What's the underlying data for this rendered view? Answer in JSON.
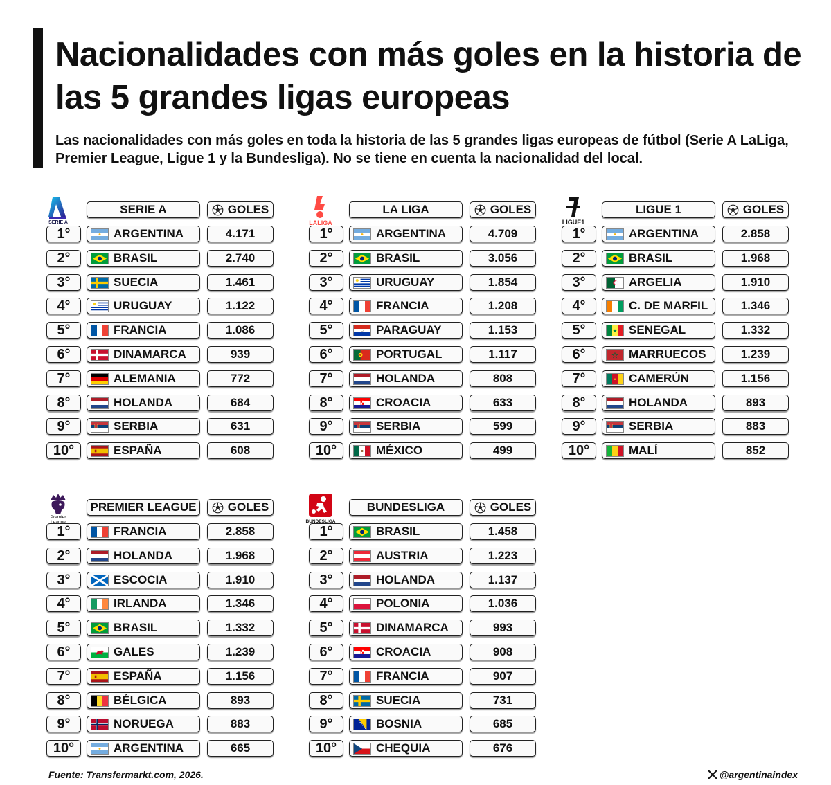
{
  "title": "Nacionalidades con más goles en la historia de las 5 grandes ligas europeas",
  "subtitle": "Las nacionalidades con más goles en toda la historia de las 5 grandes ligas europeas de fútbol (Serie A LaLiga, Premier League, Ligue 1 y la Bundesliga). No se tiene en cuenta la nacionalidad del local.",
  "goals_header": "GOLES",
  "leagues": [
    {
      "name": "SERIE A",
      "logo": "serie-a-logo",
      "logo_text": "SERIE A",
      "rows": [
        {
          "rank": "1°",
          "team": "ARGENTINA",
          "flag": "argentina",
          "goals": "4.171"
        },
        {
          "rank": "2°",
          "team": "BRASIL",
          "flag": "brazil",
          "goals": "2.740"
        },
        {
          "rank": "3°",
          "team": "SUECIA",
          "flag": "sweden",
          "goals": "1.461"
        },
        {
          "rank": "4°",
          "team": "URUGUAY",
          "flag": "uruguay",
          "goals": "1.122"
        },
        {
          "rank": "5°",
          "team": "FRANCIA",
          "flag": "france",
          "goals": "1.086"
        },
        {
          "rank": "6°",
          "team": "DINAMARCA",
          "flag": "denmark",
          "goals": "939"
        },
        {
          "rank": "7°",
          "team": "ALEMANIA",
          "flag": "germany",
          "goals": "772"
        },
        {
          "rank": "8°",
          "team": "HOLANDA",
          "flag": "netherlands",
          "goals": "684"
        },
        {
          "rank": "9°",
          "team": "SERBIA",
          "flag": "serbia",
          "goals": "631"
        },
        {
          "rank": "10°",
          "team": "ESPAÑA",
          "flag": "spain",
          "goals": "608"
        }
      ]
    },
    {
      "name": "LA LIGA",
      "logo": "laliga-logo",
      "logo_text": "LALIGA",
      "rows": [
        {
          "rank": "1°",
          "team": "ARGENTINA",
          "flag": "argentina",
          "goals": "4.709"
        },
        {
          "rank": "2°",
          "team": "BRASIL",
          "flag": "brazil",
          "goals": "3.056"
        },
        {
          "rank": "3°",
          "team": "URUGUAY",
          "flag": "uruguay",
          "goals": "1.854"
        },
        {
          "rank": "4°",
          "team": "FRANCIA",
          "flag": "france",
          "goals": "1.208"
        },
        {
          "rank": "5°",
          "team": "PARAGUAY",
          "flag": "paraguay",
          "goals": "1.153"
        },
        {
          "rank": "6°",
          "team": "PORTUGAL",
          "flag": "portugal",
          "goals": "1.117"
        },
        {
          "rank": "7°",
          "team": "HOLANDA",
          "flag": "netherlands",
          "goals": "808"
        },
        {
          "rank": "8°",
          "team": "CROACIA",
          "flag": "croatia",
          "goals": "633"
        },
        {
          "rank": "9°",
          "team": "SERBIA",
          "flag": "serbia",
          "goals": "599"
        },
        {
          "rank": "10°",
          "team": "MÉXICO",
          "flag": "mexico",
          "goals": "499"
        }
      ]
    },
    {
      "name": "LIGUE 1",
      "logo": "ligue1-logo",
      "logo_text": "LIGUE1",
      "rows": [
        {
          "rank": "1°",
          "team": "ARGENTINA",
          "flag": "argentina",
          "goals": "2.858"
        },
        {
          "rank": "2°",
          "team": "BRASIL",
          "flag": "brazil",
          "goals": "1.968"
        },
        {
          "rank": "3°",
          "team": "ARGELIA",
          "flag": "algeria",
          "goals": "1.910"
        },
        {
          "rank": "4°",
          "team": "C. DE MARFIL",
          "flag": "ivory-coast",
          "goals": "1.346"
        },
        {
          "rank": "5°",
          "team": "SENEGAL",
          "flag": "senegal",
          "goals": "1.332"
        },
        {
          "rank": "6°",
          "team": "MARRUECOS",
          "flag": "morocco",
          "goals": "1.239"
        },
        {
          "rank": "7°",
          "team": "CAMERÚN",
          "flag": "cameroon",
          "goals": "1.156"
        },
        {
          "rank": "8°",
          "team": "HOLANDA",
          "flag": "netherlands",
          "goals": "893"
        },
        {
          "rank": "9°",
          "team": "SERBIA",
          "flag": "serbia",
          "goals": "883"
        },
        {
          "rank": "10°",
          "team": "MALÍ",
          "flag": "mali",
          "goals": "852"
        }
      ]
    },
    {
      "name": "PREMIER LEAGUE",
      "logo": "premier-league-logo",
      "logo_text": "Premier League",
      "rows": [
        {
          "rank": "1°",
          "team": "FRANCIA",
          "flag": "france",
          "goals": "2.858"
        },
        {
          "rank": "2°",
          "team": "HOLANDA",
          "flag": "netherlands",
          "goals": "1.968"
        },
        {
          "rank": "3°",
          "team": "ESCOCIA",
          "flag": "scotland",
          "goals": "1.910"
        },
        {
          "rank": "4°",
          "team": "IRLANDA",
          "flag": "ireland",
          "goals": "1.346"
        },
        {
          "rank": "5°",
          "team": "BRASIL",
          "flag": "brazil",
          "goals": "1.332"
        },
        {
          "rank": "6°",
          "team": "GALES",
          "flag": "wales",
          "goals": "1.239"
        },
        {
          "rank": "7°",
          "team": "ESPAÑA",
          "flag": "spain",
          "goals": "1.156"
        },
        {
          "rank": "8°",
          "team": "BÉLGICA",
          "flag": "belgium",
          "goals": "893"
        },
        {
          "rank": "9°",
          "team": "NORUEGA",
          "flag": "norway",
          "goals": "883"
        },
        {
          "rank": "10°",
          "team": "ARGENTINA",
          "flag": "argentina",
          "goals": "665"
        }
      ]
    },
    {
      "name": "BUNDESLIGA",
      "logo": "bundesliga-logo",
      "logo_text": "BUNDESLIGA",
      "rows": [
        {
          "rank": "1°",
          "team": "BRASIL",
          "flag": "brazil",
          "goals": "1.458"
        },
        {
          "rank": "2°",
          "team": "AUSTRIA",
          "flag": "austria",
          "goals": "1.223"
        },
        {
          "rank": "3°",
          "team": "HOLANDA",
          "flag": "netherlands",
          "goals": "1.137"
        },
        {
          "rank": "4°",
          "team": "POLONIA",
          "flag": "poland",
          "goals": "1.036"
        },
        {
          "rank": "5°",
          "team": "DINAMARCA",
          "flag": "denmark",
          "goals": "993"
        },
        {
          "rank": "6°",
          "team": "CROACIA",
          "flag": "croatia",
          "goals": "908"
        },
        {
          "rank": "7°",
          "team": "FRANCIA",
          "flag": "france",
          "goals": "907"
        },
        {
          "rank": "8°",
          "team": "SUECIA",
          "flag": "sweden",
          "goals": "731"
        },
        {
          "rank": "9°",
          "team": "BOSNIA",
          "flag": "bosnia",
          "goals": "685"
        },
        {
          "rank": "10°",
          "team": "CHEQUIA",
          "flag": "czechia",
          "goals": "676"
        }
      ]
    }
  ],
  "source": "Fuente: Transfermarkt.com, 2026.",
  "handle": "@argentinaindex",
  "handle_icon": "x-logo-icon"
}
